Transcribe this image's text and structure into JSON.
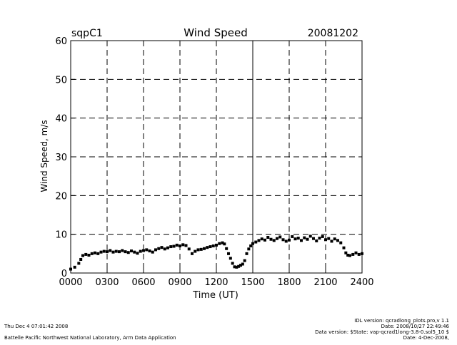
{
  "chart_data": {
    "type": "scatter",
    "title": "Wind Speed",
    "site_label": "sqpC1",
    "date_label": "20081202",
    "xlabel": "Time (UT)",
    "ylabel": "Wind Speed, m/s",
    "xlim": [
      0,
      2400
    ],
    "ylim": [
      0,
      60
    ],
    "x_ticks": [
      "0000",
      "0300",
      "0600",
      "0900",
      "1200",
      "1500",
      "1800",
      "2100",
      "2400"
    ],
    "y_ticks": [
      "0",
      "10",
      "20",
      "30",
      "40",
      "50",
      "60"
    ],
    "grid": "dashed",
    "solid_vertical_line_at": "1500",
    "x_is_hhmm": true,
    "series": [
      {
        "name": "",
        "points": [
          [
            "0000",
            1.0
          ],
          [
            "0020",
            1.5
          ],
          [
            "0040",
            2.5
          ],
          [
            "0050",
            3.5
          ],
          [
            "0100",
            4.5
          ],
          [
            "0115",
            4.8
          ],
          [
            "0130",
            4.6
          ],
          [
            "0145",
            5.0
          ],
          [
            "0200",
            5.2
          ],
          [
            "0215",
            5.0
          ],
          [
            "0230",
            5.4
          ],
          [
            "0245",
            5.6
          ],
          [
            "0300",
            5.5
          ],
          [
            "0315",
            5.8
          ],
          [
            "0330",
            5.4
          ],
          [
            "0345",
            5.6
          ],
          [
            "0400",
            5.5
          ],
          [
            "0415",
            5.8
          ],
          [
            "0430",
            5.5
          ],
          [
            "0445",
            5.3
          ],
          [
            "0500",
            5.7
          ],
          [
            "0515",
            5.4
          ],
          [
            "0530",
            5.1
          ],
          [
            "0545",
            5.6
          ],
          [
            "0600",
            5.8
          ],
          [
            "0615",
            6.0
          ],
          [
            "0630",
            5.7
          ],
          [
            "0645",
            5.4
          ],
          [
            "0700",
            6.0
          ],
          [
            "0715",
            6.3
          ],
          [
            "0730",
            6.6
          ],
          [
            "0745",
            6.2
          ],
          [
            "0800",
            6.5
          ],
          [
            "0815",
            6.8
          ],
          [
            "0830",
            6.9
          ],
          [
            "0845",
            7.2
          ],
          [
            "0900",
            7.0
          ],
          [
            "0915",
            7.3
          ],
          [
            "0930",
            7.1
          ],
          [
            "0945",
            6.2
          ],
          [
            "1000",
            5.0
          ],
          [
            "1015",
            5.6
          ],
          [
            "1030",
            6.0
          ],
          [
            "1045",
            6.1
          ],
          [
            "1100",
            6.3
          ],
          [
            "1115",
            6.6
          ],
          [
            "1130",
            6.8
          ],
          [
            "1145",
            7.0
          ],
          [
            "1200",
            7.2
          ],
          [
            "1215",
            7.6
          ],
          [
            "1230",
            7.8
          ],
          [
            "1240",
            7.5
          ],
          [
            "1250",
            6.3
          ],
          [
            "1300",
            5.0
          ],
          [
            "1310",
            3.8
          ],
          [
            "1320",
            2.5
          ],
          [
            "1330",
            1.6
          ],
          [
            "1340",
            1.5
          ],
          [
            "1350",
            1.7
          ],
          [
            "1400",
            2.0
          ],
          [
            "1410",
            2.3
          ],
          [
            "1420",
            3.2
          ],
          [
            "1430",
            5.0
          ],
          [
            "1440",
            6.2
          ],
          [
            "1450",
            7.0
          ],
          [
            "1500",
            7.6
          ],
          [
            "1515",
            8.0
          ],
          [
            "1530",
            8.4
          ],
          [
            "1545",
            8.8
          ],
          [
            "1600",
            8.5
          ],
          [
            "1615",
            9.2
          ],
          [
            "1630",
            8.7
          ],
          [
            "1645",
            8.4
          ],
          [
            "1700",
            8.9
          ],
          [
            "1715",
            9.3
          ],
          [
            "1730",
            8.6
          ],
          [
            "1745",
            8.2
          ],
          [
            "1800",
            8.5
          ],
          [
            "1815",
            9.4
          ],
          [
            "1830",
            8.8
          ],
          [
            "1845",
            9.0
          ],
          [
            "1900",
            8.4
          ],
          [
            "1915",
            9.1
          ],
          [
            "1930",
            8.7
          ],
          [
            "1945",
            9.5
          ],
          [
            "2000",
            8.9
          ],
          [
            "2015",
            8.3
          ],
          [
            "2030",
            9.0
          ],
          [
            "2045",
            9.4
          ],
          [
            "2100",
            8.6
          ],
          [
            "2115",
            8.9
          ],
          [
            "2130",
            8.2
          ],
          [
            "2145",
            8.8
          ],
          [
            "2200",
            8.4
          ],
          [
            "2215",
            7.8
          ],
          [
            "2230",
            6.5
          ],
          [
            "2240",
            5.2
          ],
          [
            "2250",
            4.6
          ],
          [
            "2300",
            4.5
          ],
          [
            "2315",
            4.8
          ],
          [
            "2330",
            5.2
          ],
          [
            "2345",
            4.8
          ],
          [
            "2400",
            5.0
          ]
        ]
      }
    ]
  },
  "footer": {
    "left_line1": "Thu Dec  4 07:01:42 2008",
    "left_line2": "Battelle Pacific Northwest National Laboratory, Arm Data Application",
    "right_line1": "IDL version: qcradlong_plots.pro,v 1.1",
    "right_line2": "Date: 2008/10/27 22:49:46",
    "right_line3": "Data version: $State: vap-qcrad1long-3.8-0.sol5_10 $",
    "right_line4": "Date: 4-Dec-2008,"
  }
}
